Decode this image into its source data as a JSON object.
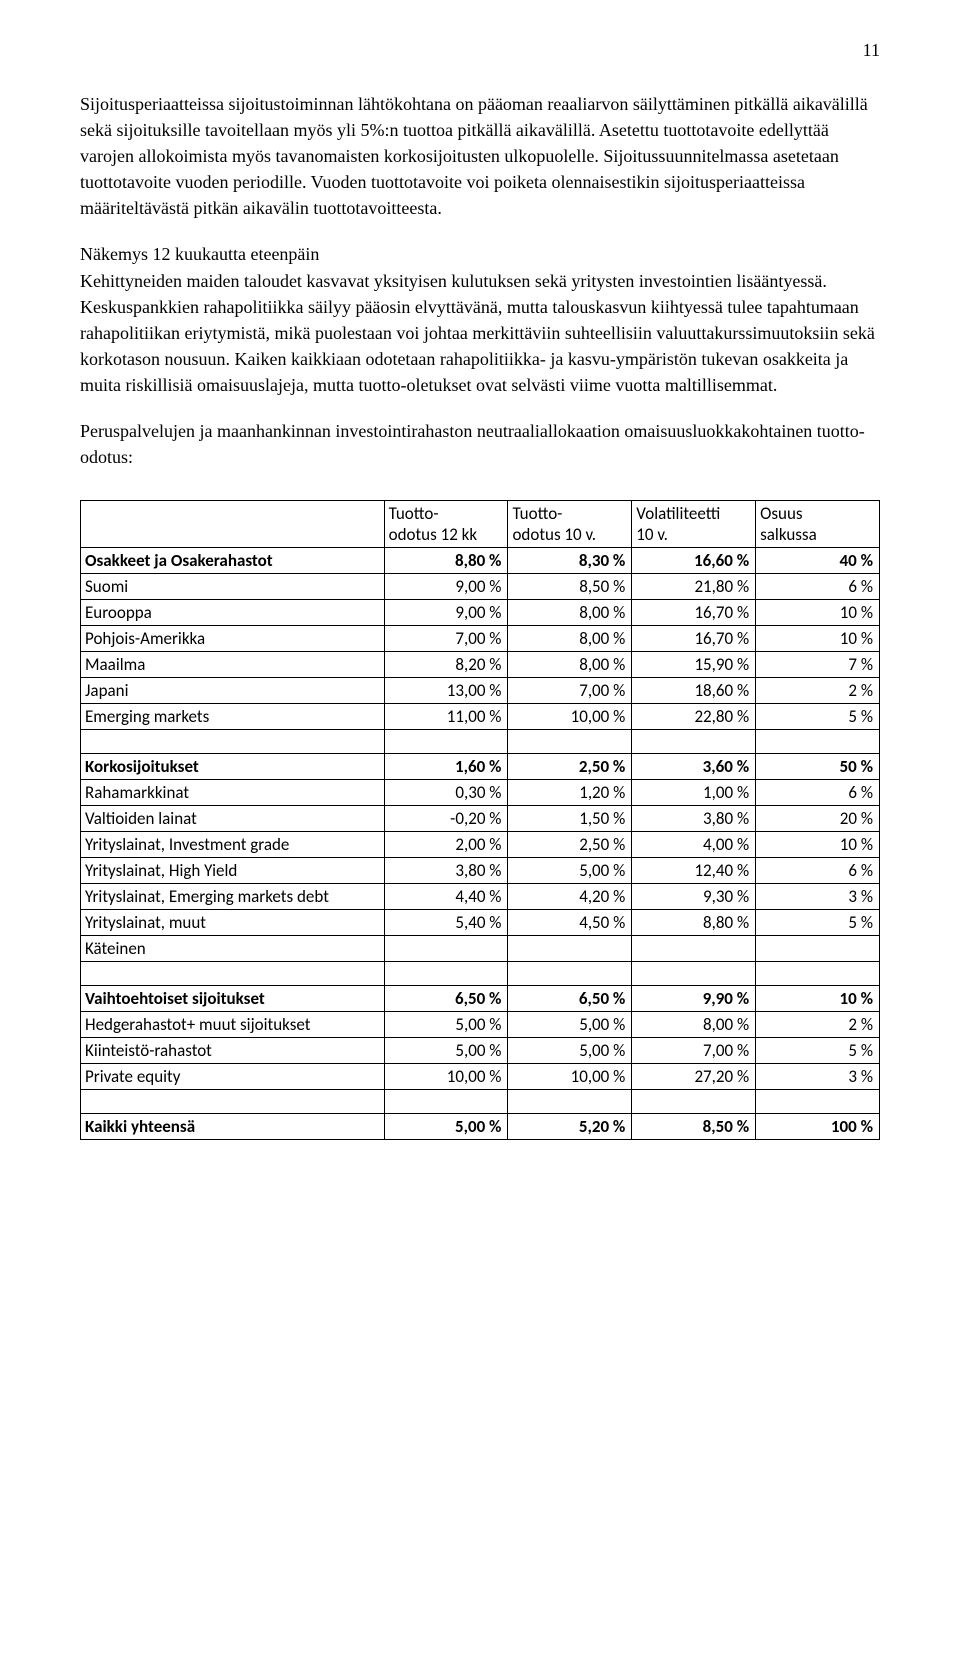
{
  "page_number": "11",
  "paragraphs": {
    "p1": "Sijoitusperiaatteissa sijoitustoiminnan lähtökohtana on pääoman reaaliarvon säilyttäminen pitkällä aikavälillä sekä sijoituksille tavoitellaan myös yli 5%:n tuottoa pitkällä aikavälillä. Asetettu tuottotavoite edellyttää varojen allokoimista myös tavanomaisten korkosijoitusten ulkopuolelle. Sijoitussuunnitelmassa asetetaan tuottotavoite vuoden periodille. Vuoden tuottotavoite voi poiketa olennaisestikin sijoitusperiaatteissa määriteltävästä pitkän aikavälin tuottotavoitteesta.",
    "p2_lead": "Näkemys 12 kuukautta eteenpäin",
    "p2_body": "Kehittyneiden maiden taloudet kasvavat yksityisen kulutuksen sekä yritysten investointien lisääntyessä. Keskuspankkien rahapolitiikka säilyy pääosin elvyttävänä, mutta talouskasvun kiihtyessä tulee tapahtumaan rahapolitiikan eriytymistä, mikä puolestaan voi johtaa merkittäviin suhteellisiin valuuttakurssimuutoksiin sekä korkotason nousuun. Kaiken kaikkiaan odotetaan rahapolitiikka- ja kasvu-ympäristön tukevan osakkeita ja muita riskillisiä omaisuuslajeja, mutta tuotto-oletukset ovat selvästi viime vuotta maltillisemmat.",
    "p3": "Peruspalvelujen ja maanhankinnan investointirahaston neutraaliallokaation omaisuusluokkakohtainen tuotto-odotus:"
  },
  "table": {
    "headers": {
      "h1a": "Tuotto-",
      "h1b": "odotus 12 kk",
      "h2a": "Tuotto-",
      "h2b": "odotus 10 v.",
      "h3a": "Volatiliteetti",
      "h3b": "10 v.",
      "h4a": "Osuus",
      "h4b": "salkussa"
    },
    "rows": [
      {
        "label": "Osakkeet ja Osakerahastot",
        "c1": "8,80 %",
        "c2": "8,30 %",
        "c3": "16,60 %",
        "c4": "40 %",
        "bold": true
      },
      {
        "label": "Suomi",
        "c1": "9,00 %",
        "c2": "8,50 %",
        "c3": "21,80 %",
        "c4": "6 %"
      },
      {
        "label": "Eurooppa",
        "c1": "9,00 %",
        "c2": "8,00 %",
        "c3": "16,70 %",
        "c4": "10 %"
      },
      {
        "label": "Pohjois-Amerikka",
        "c1": "7,00 %",
        "c2": "8,00 %",
        "c3": "16,70 %",
        "c4": "10 %"
      },
      {
        "label": "Maailma",
        "c1": "8,20 %",
        "c2": "8,00 %",
        "c3": "15,90 %",
        "c4": "7 %"
      },
      {
        "label": "Japani",
        "c1": "13,00 %",
        "c2": "7,00 %",
        "c3": "18,60 %",
        "c4": "2 %"
      },
      {
        "label": "Emerging markets",
        "c1": "11,00 %",
        "c2": "10,00 %",
        "c3": "22,80 %",
        "c4": "5 %"
      },
      {
        "empty": true
      },
      {
        "label": "Korkosijoitukset",
        "c1": "1,60 %",
        "c2": "2,50 %",
        "c3": "3,60 %",
        "c4": "50 %",
        "bold": true
      },
      {
        "label": "Rahamarkkinat",
        "c1": "0,30 %",
        "c2": "1,20 %",
        "c3": "1,00 %",
        "c4": "6 %"
      },
      {
        "label": "Valtioiden lainat",
        "c1": "-0,20 %",
        "c2": "1,50 %",
        "c3": "3,80 %",
        "c4": "20 %"
      },
      {
        "label": "Yrityslainat, Investment grade",
        "c1": "2,00 %",
        "c2": "2,50 %",
        "c3": "4,00 %",
        "c4": "10 %"
      },
      {
        "label": "Yrityslainat, High Yield",
        "c1": "3,80 %",
        "c2": "5,00 %",
        "c3": "12,40 %",
        "c4": "6 %"
      },
      {
        "label": "Yrityslainat, Emerging markets debt",
        "c1": "4,40 %",
        "c2": "4,20 %",
        "c3": "9,30 %",
        "c4": "3 %",
        "clip": true
      },
      {
        "label": "Yrityslainat, muut",
        "c1": "5,40 %",
        "c2": "4,50 %",
        "c3": "8,80 %",
        "c4": "5 %"
      },
      {
        "label": "Käteinen",
        "c1": "",
        "c2": "",
        "c3": "",
        "c4": ""
      },
      {
        "empty": true
      },
      {
        "label": "Vaihtoehtoiset sijoitukset",
        "c1": "6,50 %",
        "c2": "6,50 %",
        "c3": "9,90 %",
        "c4": "10 %",
        "bold": true
      },
      {
        "label": "Hedgerahastot+ muut sijoitukset",
        "c1": "5,00 %",
        "c2": "5,00 %",
        "c3": "8,00 %",
        "c4": "2 %"
      },
      {
        "label": "Kiinteistö-rahastot",
        "c1": "5,00 %",
        "c2": "5,00 %",
        "c3": "7,00 %",
        "c4": "5 %"
      },
      {
        "label": "Private equity",
        "c1": "10,00 %",
        "c2": "10,00 %",
        "c3": "27,20 %",
        "c4": "3 %"
      },
      {
        "empty": true
      },
      {
        "label": "Kaikki yhteensä",
        "c1": "5,00 %",
        "c2": "5,20 %",
        "c3": "8,50 %",
        "c4": "100 %",
        "bold": true
      }
    ]
  }
}
